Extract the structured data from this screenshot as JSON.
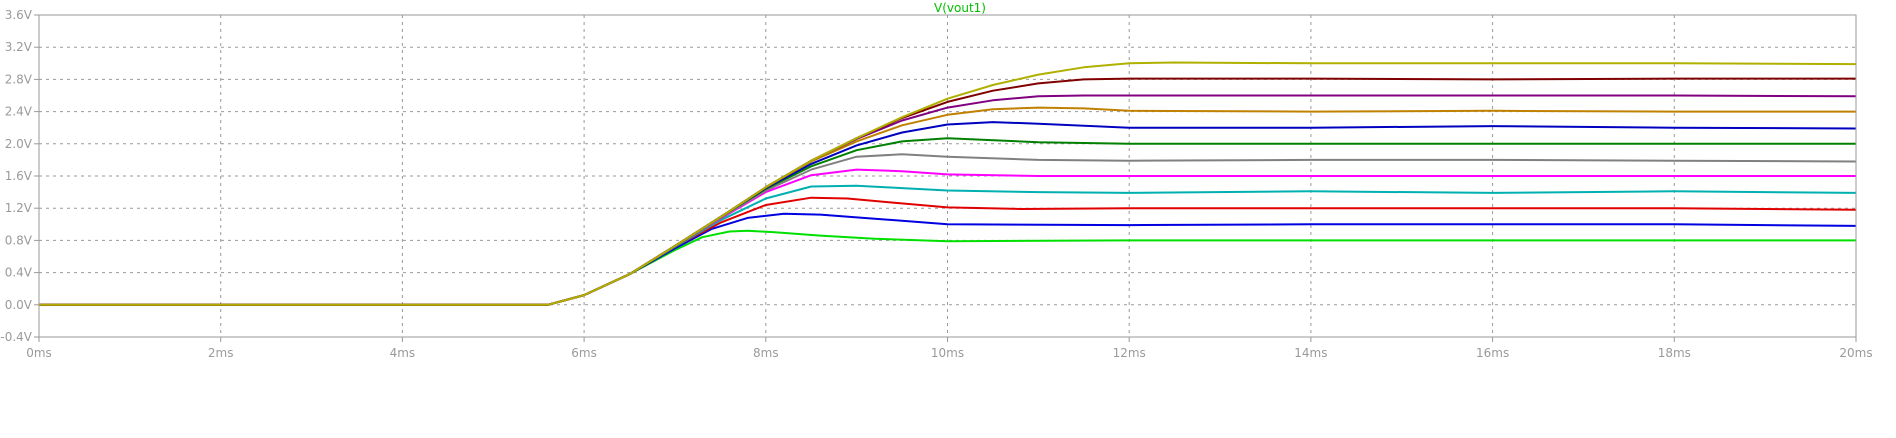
{
  "chart_data": {
    "type": "line",
    "title": "V(vout1)",
    "xlabel": "",
    "ylabel": "",
    "xlim": [
      0,
      20
    ],
    "ylim": [
      -0.4,
      3.6
    ],
    "x_ticks": [
      0,
      2,
      4,
      6,
      8,
      10,
      12,
      14,
      16,
      18,
      20
    ],
    "x_tick_labels": [
      "0ms",
      "2ms",
      "4ms",
      "6ms",
      "8ms",
      "10ms",
      "12ms",
      "14ms",
      "16ms",
      "18ms",
      "20ms"
    ],
    "y_ticks": [
      -0.4,
      0.0,
      0.4,
      0.8,
      1.2,
      1.6,
      2.0,
      2.4,
      2.8,
      3.2,
      3.6
    ],
    "y_tick_labels": [
      "-0.4V",
      "0.0V",
      "0.4V",
      "0.8V",
      "1.2V",
      "1.6V",
      "2.0V",
      "2.4V",
      "2.8V",
      "3.2V",
      "3.6V"
    ],
    "grid": true,
    "colors": {
      "background": "#ffffff",
      "grid": "#9a9a9a",
      "axis": "#9a9a9a",
      "tick_label": "#9a9a9a",
      "title": "#00c000"
    },
    "series": [
      {
        "color": "#00e000",
        "x": [
          0,
          5.6,
          6.0,
          6.5,
          7.0,
          7.3,
          7.6,
          7.8,
          8.1,
          8.6,
          9.2,
          10.0,
          12,
          14,
          16,
          18,
          20
        ],
        "values": [
          0,
          0,
          0.12,
          0.38,
          0.68,
          0.84,
          0.91,
          0.92,
          0.9,
          0.86,
          0.82,
          0.79,
          0.8,
          0.8,
          0.8,
          0.8,
          0.8
        ]
      },
      {
        "color": "#0000e0",
        "x": [
          0,
          5.6,
          6.0,
          6.5,
          7.0,
          7.4,
          7.8,
          8.2,
          8.6,
          9.2,
          10.0,
          12,
          14,
          16,
          18,
          20
        ],
        "values": [
          0,
          0,
          0.12,
          0.38,
          0.7,
          0.94,
          1.08,
          1.13,
          1.12,
          1.07,
          1.0,
          0.99,
          1.0,
          1.0,
          1.0,
          0.98
        ]
      },
      {
        "color": "#e00000",
        "x": [
          0,
          5.6,
          6.0,
          6.5,
          7.0,
          7.5,
          8.0,
          8.5,
          8.9,
          9.4,
          10.0,
          10.8,
          12,
          14,
          16,
          18,
          20
        ],
        "values": [
          0,
          0,
          0.12,
          0.38,
          0.72,
          1.02,
          1.24,
          1.33,
          1.32,
          1.27,
          1.21,
          1.19,
          1.2,
          1.2,
          1.2,
          1.2,
          1.18
        ]
      },
      {
        "color": "#00b0b0",
        "x": [
          0,
          5.6,
          6.0,
          6.5,
          7.0,
          7.5,
          8.0,
          8.5,
          9.0,
          9.5,
          10.0,
          11.0,
          12,
          14,
          16,
          18,
          20
        ],
        "values": [
          0,
          0,
          0.12,
          0.38,
          0.72,
          1.05,
          1.32,
          1.47,
          1.48,
          1.45,
          1.42,
          1.4,
          1.39,
          1.41,
          1.39,
          1.41,
          1.39
        ]
      },
      {
        "color": "#ff00ff",
        "x": [
          0,
          5.6,
          6.0,
          6.5,
          7.0,
          7.5,
          8.0,
          8.5,
          9.0,
          9.5,
          10.0,
          11.0,
          12,
          14,
          16,
          18,
          20
        ],
        "values": [
          0,
          0,
          0.12,
          0.38,
          0.73,
          1.07,
          1.4,
          1.61,
          1.68,
          1.66,
          1.62,
          1.6,
          1.6,
          1.6,
          1.6,
          1.6,
          1.6
        ]
      },
      {
        "color": "#808080",
        "x": [
          0,
          5.6,
          6.0,
          6.5,
          7.0,
          7.5,
          8.0,
          8.5,
          9.0,
          9.5,
          10.0,
          11.0,
          12,
          14,
          16,
          18,
          20
        ],
        "values": [
          0,
          0,
          0.12,
          0.38,
          0.73,
          1.08,
          1.42,
          1.68,
          1.84,
          1.87,
          1.84,
          1.8,
          1.79,
          1.8,
          1.8,
          1.79,
          1.78
        ]
      },
      {
        "color": "#008000",
        "x": [
          0,
          5.6,
          6.0,
          6.5,
          7.0,
          7.5,
          8.0,
          8.5,
          9.0,
          9.5,
          10.0,
          11.0,
          12,
          14,
          16,
          18,
          20
        ],
        "values": [
          0,
          0,
          0.12,
          0.38,
          0.73,
          1.09,
          1.44,
          1.72,
          1.92,
          2.03,
          2.07,
          2.02,
          2.0,
          2.0,
          2.0,
          2.0,
          2.0
        ]
      },
      {
        "color": "#0000c0",
        "x": [
          0,
          5.6,
          6.0,
          6.5,
          7.0,
          7.5,
          8.0,
          8.5,
          9.0,
          9.5,
          10.0,
          10.5,
          11.0,
          12,
          14,
          16,
          18,
          20
        ],
        "values": [
          0,
          0,
          0.12,
          0.38,
          0.73,
          1.09,
          1.45,
          1.75,
          1.98,
          2.14,
          2.24,
          2.27,
          2.25,
          2.2,
          2.2,
          2.22,
          2.2,
          2.19
        ]
      },
      {
        "color": "#c08000",
        "x": [
          0,
          5.6,
          6.0,
          6.5,
          7.0,
          7.5,
          8.0,
          8.5,
          9.0,
          9.5,
          10.0,
          10.5,
          11.0,
          11.5,
          12,
          14,
          16,
          18,
          20
        ],
        "values": [
          0,
          0,
          0.12,
          0.38,
          0.73,
          1.09,
          1.46,
          1.78,
          2.03,
          2.23,
          2.36,
          2.43,
          2.45,
          2.44,
          2.41,
          2.4,
          2.41,
          2.4,
          2.4
        ]
      },
      {
        "color": "#800080",
        "x": [
          0,
          5.6,
          6.0,
          6.5,
          7.0,
          7.5,
          8.0,
          8.5,
          9.0,
          9.5,
          10.0,
          10.5,
          11.0,
          11.5,
          12,
          14,
          16,
          18,
          20
        ],
        "values": [
          0,
          0,
          0.12,
          0.38,
          0.73,
          1.09,
          1.46,
          1.79,
          2.06,
          2.29,
          2.45,
          2.54,
          2.59,
          2.6,
          2.6,
          2.6,
          2.6,
          2.6,
          2.59
        ]
      },
      {
        "color": "#800000",
        "x": [
          0,
          5.6,
          6.0,
          6.5,
          7.0,
          7.5,
          8.0,
          8.5,
          9.0,
          9.5,
          10.0,
          10.5,
          11.0,
          11.5,
          12,
          14,
          16,
          18,
          20
        ],
        "values": [
          0,
          0,
          0.12,
          0.38,
          0.73,
          1.09,
          1.46,
          1.79,
          2.07,
          2.32,
          2.52,
          2.66,
          2.75,
          2.8,
          2.81,
          2.81,
          2.8,
          2.81,
          2.81
        ]
      },
      {
        "color": "#b0b000",
        "x": [
          0,
          5.6,
          6.0,
          6.5,
          7.0,
          7.5,
          8.0,
          8.5,
          9.0,
          9.5,
          10.0,
          10.5,
          11.0,
          11.5,
          12.0,
          12.5,
          14,
          16,
          18,
          20
        ],
        "values": [
          0,
          0,
          0.12,
          0.38,
          0.73,
          1.09,
          1.46,
          1.79,
          2.07,
          2.33,
          2.56,
          2.73,
          2.86,
          2.95,
          3.0,
          3.01,
          3.0,
          3.0,
          3.0,
          2.99
        ]
      }
    ]
  }
}
